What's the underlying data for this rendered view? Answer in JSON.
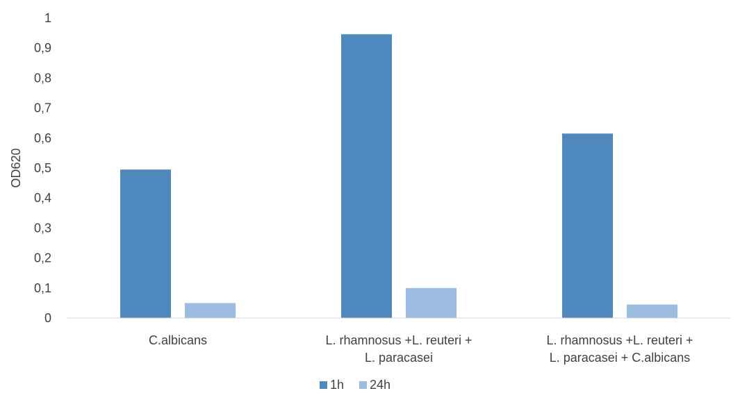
{
  "chart_data": {
    "type": "bar",
    "categories": [
      [
        "C.albicans"
      ],
      [
        "L. rhamnosus +L. reuteri +",
        "L. paracasei"
      ],
      [
        "L. rhamnosus +L. reuteri +",
        "L. paracasei + C.albicans"
      ]
    ],
    "series": [
      {
        "name": "1h",
        "color": "#4f88bd",
        "values": [
          0.495,
          0.946,
          0.615
        ]
      },
      {
        "name": "24h",
        "color": "#9bbbe0",
        "values": [
          0.05,
          0.1,
          0.045
        ]
      }
    ],
    "ylabel": "OD620",
    "ylim": [
      0,
      1
    ],
    "yticks": [
      "0",
      "0,1",
      "0,2",
      "0,3",
      "0,4",
      "0,5",
      "0,6",
      "0,7",
      "0,8",
      "0,9",
      "1"
    ],
    "grid": false,
    "legend": "bottom"
  }
}
